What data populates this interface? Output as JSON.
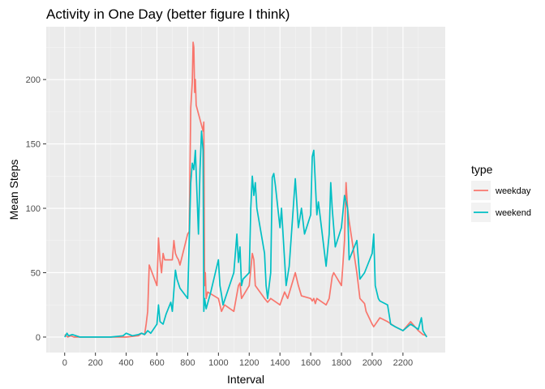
{
  "chart_data": {
    "type": "line",
    "title": "Activity in One Day (better figure I think)",
    "xlabel": "Interval",
    "ylabel": "Mean Steps",
    "xlim": [
      -120,
      2475
    ],
    "ylim": [
      -12,
      241
    ],
    "x_ticks": [
      0,
      200,
      400,
      600,
      800,
      1000,
      1200,
      1400,
      1600,
      1800,
      2000,
      2200
    ],
    "y_ticks": [
      0,
      50,
      100,
      150,
      200
    ],
    "grid": true,
    "legend": {
      "title": "type",
      "position": "right"
    },
    "series": [
      {
        "name": "weekday",
        "color": "#F8766D",
        "points": [
          [
            0,
            2
          ],
          [
            20,
            0
          ],
          [
            40,
            1
          ],
          [
            60,
            0
          ],
          [
            100,
            0
          ],
          [
            200,
            0
          ],
          [
            300,
            0
          ],
          [
            400,
            0
          ],
          [
            480,
            1
          ],
          [
            500,
            3
          ],
          [
            520,
            2
          ],
          [
            530,
            10
          ],
          [
            540,
            20
          ],
          [
            550,
            56
          ],
          [
            600,
            40
          ],
          [
            610,
            77
          ],
          [
            620,
            60
          ],
          [
            630,
            50
          ],
          [
            640,
            65
          ],
          [
            650,
            60
          ],
          [
            700,
            60
          ],
          [
            710,
            75
          ],
          [
            720,
            65
          ],
          [
            730,
            62
          ],
          [
            740,
            60
          ],
          [
            750,
            56
          ],
          [
            800,
            80
          ],
          [
            810,
            82
          ],
          [
            820,
            178
          ],
          [
            830,
            198
          ],
          [
            835,
            229
          ],
          [
            840,
            225
          ],
          [
            845,
            190
          ],
          [
            850,
            200
          ],
          [
            855,
            180
          ],
          [
            900,
            160
          ],
          [
            905,
            167
          ],
          [
            910,
            40
          ],
          [
            915,
            50
          ],
          [
            920,
            30
          ],
          [
            930,
            35
          ],
          [
            1000,
            30
          ],
          [
            1020,
            20
          ],
          [
            1040,
            25
          ],
          [
            1100,
            20
          ],
          [
            1130,
            40
          ],
          [
            1140,
            42
          ],
          [
            1150,
            30
          ],
          [
            1200,
            40
          ],
          [
            1220,
            65
          ],
          [
            1230,
            60
          ],
          [
            1240,
            40
          ],
          [
            1300,
            30
          ],
          [
            1320,
            27
          ],
          [
            1340,
            30
          ],
          [
            1400,
            25
          ],
          [
            1430,
            35
          ],
          [
            1450,
            30
          ],
          [
            1500,
            50
          ],
          [
            1520,
            40
          ],
          [
            1540,
            32
          ],
          [
            1600,
            30
          ],
          [
            1610,
            28
          ],
          [
            1620,
            30
          ],
          [
            1630,
            26
          ],
          [
            1640,
            30
          ],
          [
            1700,
            25
          ],
          [
            1720,
            30
          ],
          [
            1740,
            47
          ],
          [
            1750,
            50
          ],
          [
            1800,
            40
          ],
          [
            1820,
            75
          ],
          [
            1830,
            120
          ],
          [
            1840,
            100
          ],
          [
            1850,
            90
          ],
          [
            1900,
            50
          ],
          [
            1920,
            30
          ],
          [
            1950,
            26
          ],
          [
            1960,
            20
          ],
          [
            2000,
            10
          ],
          [
            2010,
            8
          ],
          [
            2050,
            15
          ],
          [
            2100,
            12
          ],
          [
            2150,
            8
          ],
          [
            2200,
            5
          ],
          [
            2250,
            12
          ],
          [
            2300,
            5
          ],
          [
            2330,
            2
          ],
          [
            2355,
            1
          ]
        ]
      },
      {
        "name": "weekend",
        "color": "#00BFC4",
        "points": [
          [
            0,
            0
          ],
          [
            15,
            3
          ],
          [
            25,
            1
          ],
          [
            50,
            2
          ],
          [
            100,
            0
          ],
          [
            200,
            0
          ],
          [
            300,
            0
          ],
          [
            380,
            1
          ],
          [
            400,
            3
          ],
          [
            440,
            1
          ],
          [
            480,
            2
          ],
          [
            500,
            3
          ],
          [
            520,
            2
          ],
          [
            540,
            5
          ],
          [
            560,
            3
          ],
          [
            600,
            10
          ],
          [
            610,
            25
          ],
          [
            620,
            12
          ],
          [
            640,
            10
          ],
          [
            660,
            18
          ],
          [
            690,
            27
          ],
          [
            700,
            20
          ],
          [
            720,
            52
          ],
          [
            730,
            45
          ],
          [
            750,
            38
          ],
          [
            800,
            30
          ],
          [
            820,
            120
          ],
          [
            830,
            135
          ],
          [
            840,
            130
          ],
          [
            850,
            145
          ],
          [
            870,
            80
          ],
          [
            880,
            130
          ],
          [
            890,
            160
          ],
          [
            900,
            145
          ],
          [
            905,
            20
          ],
          [
            910,
            30
          ],
          [
            920,
            22
          ],
          [
            950,
            35
          ],
          [
            1000,
            60
          ],
          [
            1010,
            40
          ],
          [
            1020,
            33
          ],
          [
            1030,
            25
          ],
          [
            1100,
            50
          ],
          [
            1120,
            80
          ],
          [
            1130,
            58
          ],
          [
            1140,
            70
          ],
          [
            1150,
            40
          ],
          [
            1160,
            45
          ],
          [
            1200,
            50
          ],
          [
            1210,
            100
          ],
          [
            1220,
            125
          ],
          [
            1230,
            110
          ],
          [
            1240,
            120
          ],
          [
            1250,
            100
          ],
          [
            1300,
            65
          ],
          [
            1310,
            40
          ],
          [
            1320,
            30
          ],
          [
            1340,
            50
          ],
          [
            1350,
            124
          ],
          [
            1360,
            127
          ],
          [
            1370,
            118
          ],
          [
            1400,
            85
          ],
          [
            1410,
            100
          ],
          [
            1440,
            40
          ],
          [
            1460,
            55
          ],
          [
            1500,
            123
          ],
          [
            1520,
            85
          ],
          [
            1540,
            100
          ],
          [
            1560,
            80
          ],
          [
            1600,
            95
          ],
          [
            1610,
            140
          ],
          [
            1620,
            145
          ],
          [
            1630,
            120
          ],
          [
            1640,
            95
          ],
          [
            1650,
            105
          ],
          [
            1700,
            55
          ],
          [
            1720,
            80
          ],
          [
            1730,
            120
          ],
          [
            1740,
            100
          ],
          [
            1760,
            70
          ],
          [
            1800,
            85
          ],
          [
            1820,
            110
          ],
          [
            1840,
            100
          ],
          [
            1850,
            60
          ],
          [
            1900,
            75
          ],
          [
            1920,
            45
          ],
          [
            1950,
            50
          ],
          [
            2000,
            65
          ],
          [
            2010,
            80
          ],
          [
            2020,
            40
          ],
          [
            2040,
            30
          ],
          [
            2050,
            28
          ],
          [
            2100,
            25
          ],
          [
            2120,
            10
          ],
          [
            2150,
            8
          ],
          [
            2200,
            5
          ],
          [
            2250,
            10
          ],
          [
            2300,
            6
          ],
          [
            2320,
            15
          ],
          [
            2330,
            5
          ],
          [
            2355,
            0
          ]
        ]
      }
    ]
  }
}
